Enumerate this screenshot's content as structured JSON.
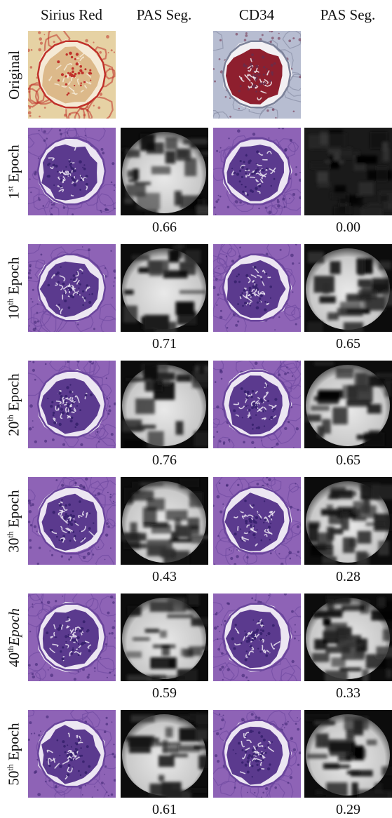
{
  "column_headers": [
    "Sirius Red",
    "PAS Seg.",
    "CD34",
    "PAS Seg."
  ],
  "rows": [
    {
      "label_num": "",
      "label_sup": "",
      "label_word": "Original",
      "word_italic": false,
      "tiles": [
        "sirius-stain",
        "empty",
        "cd34-stain",
        "empty"
      ],
      "scores": [
        "",
        ""
      ]
    },
    {
      "label_num": "1",
      "label_sup": "st",
      "label_word": " Epoch",
      "word_italic": false,
      "tiles": [
        "pas-stain",
        "seg-map",
        "pas-stain",
        "seg-map"
      ],
      "scores": [
        "0.66",
        "0.00"
      ]
    },
    {
      "label_num": "10",
      "label_sup": "th",
      "label_word": " Epoch",
      "word_italic": false,
      "tiles": [
        "pas-stain",
        "seg-map",
        "pas-stain",
        "seg-map"
      ],
      "scores": [
        "0.71",
        "0.65"
      ]
    },
    {
      "label_num": "20",
      "label_sup": "th",
      "label_word": " Epoch",
      "word_italic": false,
      "tiles": [
        "pas-stain",
        "seg-map",
        "pas-stain",
        "seg-map"
      ],
      "scores": [
        "0.76",
        "0.65"
      ]
    },
    {
      "label_num": "30",
      "label_sup": "th",
      "label_word": " Epoch",
      "word_italic": false,
      "tiles": [
        "pas-stain",
        "seg-map",
        "pas-stain",
        "seg-map"
      ],
      "scores": [
        "0.43",
        "0.28"
      ]
    },
    {
      "label_num": "40",
      "label_sup": "th",
      "label_word": "Epoch",
      "word_italic": true,
      "tiles": [
        "pas-stain",
        "seg-map",
        "pas-stain",
        "seg-map"
      ],
      "scores": [
        "0.59",
        "0.33"
      ]
    },
    {
      "label_num": "50",
      "label_sup": "th",
      "label_word": " Epoch",
      "word_italic": false,
      "tiles": [
        "pas-stain",
        "seg-map",
        "pas-stain",
        "seg-map"
      ],
      "scores": [
        "0.61",
        "0.29"
      ]
    }
  ],
  "colors": {
    "sirius_bg": "#e6d2a4",
    "sirius_red": "#c0312a",
    "sirius_core": "#dcb98a",
    "cd34_bg": "#b7bdd1",
    "cd34_red": "#8e1f2e",
    "cd34_space": "#f2f0f3",
    "pas_bg": "#8e63b6",
    "pas_core": "#5b3a8e",
    "pas_space": "#ece6f2",
    "pas_nuclei": "#3a2370",
    "seg_bg": "#0c0c0c",
    "seg_fg": "#e9e9e9"
  }
}
